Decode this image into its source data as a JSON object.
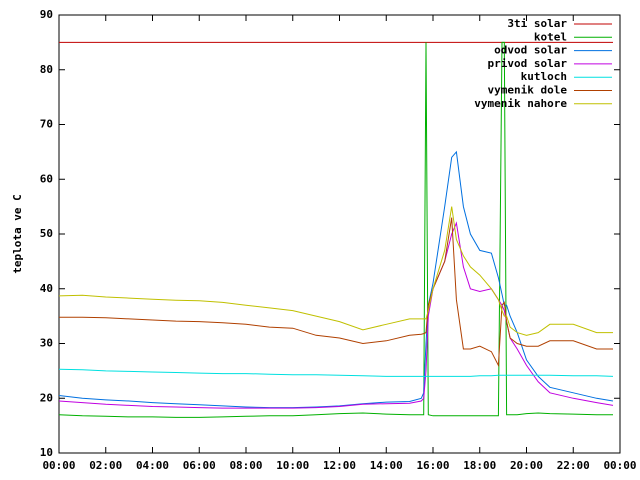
{
  "chart_data": {
    "type": "line",
    "ylabel": "teplota ve C",
    "x": [
      0,
      1,
      2,
      3,
      4,
      5,
      6,
      7,
      8,
      9,
      10,
      11,
      12,
      13,
      14,
      15,
      15.5,
      15.6,
      15.7,
      15.8,
      16,
      16.5,
      16.8,
      17,
      17.3,
      17.6,
      18,
      18.5,
      18.8,
      18.95,
      19.05,
      19.15,
      19.3,
      19.6,
      20,
      20.5,
      21,
      22,
      23,
      23.7
    ],
    "xlim": [
      0,
      24
    ],
    "xticks": [
      {
        "value": 0,
        "label": "00:00"
      },
      {
        "value": 2,
        "label": "02:00"
      },
      {
        "value": 4,
        "label": "04:00"
      },
      {
        "value": 6,
        "label": "06:00"
      },
      {
        "value": 8,
        "label": "08:00"
      },
      {
        "value": 10,
        "label": "10:00"
      },
      {
        "value": 12,
        "label": "12:00"
      },
      {
        "value": 14,
        "label": "14:00"
      },
      {
        "value": 16,
        "label": "16:00"
      },
      {
        "value": 18,
        "label": "18:00"
      },
      {
        "value": 20,
        "label": "20:00"
      },
      {
        "value": 22,
        "label": "22:00"
      },
      {
        "value": 24,
        "label": "00:00"
      }
    ],
    "ylim": [
      10,
      90
    ],
    "yticks": [
      10,
      20,
      30,
      40,
      50,
      60,
      70,
      80,
      90
    ],
    "legend": "top-right",
    "grid": false,
    "series": [
      {
        "name": "3ti solar",
        "color": "#c00000",
        "values": [
          85,
          85,
          85,
          85,
          85,
          85,
          85,
          85,
          85,
          85,
          85,
          85,
          85,
          85,
          85,
          85,
          85,
          85,
          85,
          85,
          85,
          85,
          85,
          85,
          85,
          85,
          85,
          85,
          85,
          85,
          85,
          85,
          85,
          85,
          85,
          85,
          85,
          85,
          85,
          85
        ]
      },
      {
        "name": "kotel",
        "color": "#00b000",
        "values": [
          17,
          16.8,
          16.7,
          16.6,
          16.6,
          16.5,
          16.5,
          16.6,
          16.7,
          16.8,
          16.8,
          17,
          17.2,
          17.3,
          17.1,
          17,
          17,
          17,
          85,
          17,
          16.8,
          16.8,
          16.8,
          16.8,
          16.8,
          16.8,
          16.8,
          16.8,
          16.8,
          85,
          85,
          17,
          17,
          17,
          17.2,
          17.3,
          17.2,
          17.1,
          17,
          17
        ]
      },
      {
        "name": "odvod solar",
        "color": "#0070e0",
        "values": [
          20.5,
          20,
          19.7,
          19.5,
          19.2,
          19,
          18.8,
          18.6,
          18.4,
          18.3,
          18.3,
          18.4,
          18.6,
          19,
          19.3,
          19.4,
          20,
          21,
          30,
          37,
          41,
          55,
          64,
          65,
          55,
          50,
          47,
          46.5,
          42,
          39,
          37,
          37,
          35,
          32,
          27,
          24,
          22,
          21,
          20,
          19.5
        ]
      },
      {
        "name": "privod solar",
        "color": "#c000e0",
        "values": [
          19.5,
          19.2,
          18.9,
          18.7,
          18.5,
          18.4,
          18.3,
          18.2,
          18.2,
          18.2,
          18.2,
          18.3,
          18.5,
          18.9,
          19,
          19.1,
          19.5,
          20,
          25,
          35,
          40,
          45,
          50,
          52,
          44,
          40,
          39.5,
          40,
          38,
          37,
          36,
          34,
          31,
          29,
          26,
          23,
          21,
          20,
          19.2,
          18.7
        ]
      },
      {
        "name": "kutloch",
        "color": "#00e0e0",
        "values": [
          25.3,
          25.2,
          25,
          24.9,
          24.8,
          24.7,
          24.6,
          24.5,
          24.5,
          24.4,
          24.3,
          24.3,
          24.2,
          24.1,
          24,
          24,
          24,
          24,
          24,
          24,
          24,
          24,
          24,
          24,
          24,
          24,
          24.1,
          24.1,
          24.2,
          24.2,
          24.2,
          24.2,
          24.2,
          24.2,
          24.2,
          24.2,
          24.2,
          24.1,
          24.1,
          24
        ]
      },
      {
        "name": "vymenik dole",
        "color": "#b04000",
        "values": [
          34.8,
          34.8,
          34.7,
          34.5,
          34.3,
          34.1,
          34,
          33.8,
          33.5,
          33,
          32.8,
          31.5,
          31,
          30,
          30.5,
          31.5,
          31.7,
          31.8,
          32,
          37,
          40,
          45,
          53,
          38,
          29,
          29,
          29.5,
          28.5,
          26,
          37,
          37.5,
          34,
          31,
          30,
          29.5,
          29.5,
          30.5,
          30.5,
          29,
          29
        ]
      },
      {
        "name": "vymenik nahore",
        "color": "#c0c000",
        "values": [
          38.7,
          38.8,
          38.5,
          38.3,
          38.1,
          37.9,
          37.8,
          37.5,
          37,
          36.5,
          36,
          35,
          34,
          32.5,
          33.5,
          34.5,
          34.5,
          34.5,
          34.5,
          36,
          40,
          47,
          55,
          49,
          46,
          44,
          42.5,
          40,
          38,
          36,
          35,
          35,
          33,
          32,
          31.5,
          32,
          33.5,
          33.5,
          32,
          32
        ]
      }
    ]
  }
}
